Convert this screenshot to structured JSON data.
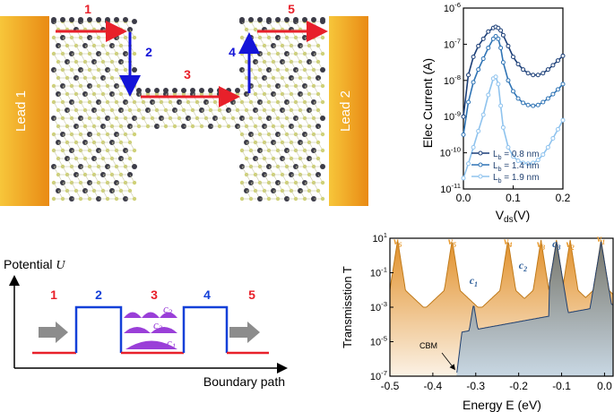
{
  "device": {
    "lead_left": "Lead 1",
    "lead_right": "Lead 2",
    "path_segments": [
      "1",
      "2",
      "3",
      "4",
      "5"
    ],
    "colors": {
      "lead": "#f2a020",
      "arrow_h": "#e8202a",
      "arrow_v": "#1414d8",
      "atom_c": "#cfd178",
      "atom_b": "#3c3c48"
    }
  },
  "potential": {
    "ylabel_text": "Potential ",
    "ylabel_symbol": "U",
    "xlabel": "Boundary path",
    "regions": [
      "1",
      "2",
      "3",
      "4",
      "5"
    ],
    "states": [
      {
        "sym": "c",
        "sub": "3"
      },
      {
        "sym": "c",
        "sub": "2"
      },
      {
        "sym": "c",
        "sub": "1"
      }
    ],
    "colors": {
      "low": "#e8202a",
      "barrier": "#1440d8",
      "state": "#9a3fd8",
      "arrow": "#8c8c8c"
    }
  },
  "chart_data": [
    {
      "type": "line",
      "title": "",
      "xlabel_main": "V",
      "xlabel_sub": "ds",
      "xlabel_unit": "(V)",
      "ylabel": "Elec Current (A)",
      "xlim": [
        0.0,
        0.2
      ],
      "ylim_log10": [
        -11,
        -6
      ],
      "yscale": "log",
      "x_ticks": [
        "0.0",
        "0.1",
        "0.2"
      ],
      "y_ticks": [
        {
          "base": "10",
          "exp": "-11"
        },
        {
          "base": "10",
          "exp": "-10"
        },
        {
          "base": "10",
          "exp": "-9"
        },
        {
          "base": "10",
          "exp": "-8"
        },
        {
          "base": "10",
          "exp": "-7"
        },
        {
          "base": "10",
          "exp": "-6"
        }
      ],
      "x": [
        0.0,
        0.01,
        0.02,
        0.03,
        0.04,
        0.05,
        0.06,
        0.065,
        0.07,
        0.075,
        0.08,
        0.09,
        0.1,
        0.11,
        0.12,
        0.13,
        0.14,
        0.15,
        0.16,
        0.17,
        0.18,
        0.19,
        0.2
      ],
      "series": [
        {
          "name": "L",
          "sub": "b",
          "value": " = 0.8 nm",
          "color": "#1c3f78",
          "log10_values": [
            -9.0,
            -7.85,
            -7.35,
            -7.05,
            -6.85,
            -6.65,
            -6.55,
            -6.52,
            -6.55,
            -6.62,
            -6.75,
            -7.05,
            -7.35,
            -7.55,
            -7.7,
            -7.8,
            -7.85,
            -7.85,
            -7.8,
            -7.7,
            -7.58,
            -7.45,
            -7.32
          ]
        },
        {
          "name": "L",
          "sub": "b",
          "value": " = 1.4 nm",
          "color": "#2f74b5",
          "log10_values": [
            -9.5,
            -8.6,
            -8.05,
            -7.7,
            -7.4,
            -7.1,
            -6.85,
            -6.78,
            -6.85,
            -7.1,
            -7.5,
            -8.0,
            -8.3,
            -8.5,
            -8.62,
            -8.68,
            -8.7,
            -8.68,
            -8.6,
            -8.5,
            -8.38,
            -8.25,
            -8.1
          ]
        },
        {
          "name": "L",
          "sub": "b",
          "value": " = 1.9 nm",
          "color": "#8fc3ee",
          "log10_values": [
            -10.7,
            -10.3,
            -9.85,
            -9.4,
            -8.95,
            -8.4,
            -7.95,
            -7.9,
            -8.1,
            -8.7,
            -9.3,
            -9.85,
            -10.1,
            -10.22,
            -10.28,
            -10.3,
            -10.28,
            -10.2,
            -10.05,
            -9.85,
            -9.6,
            -9.35,
            -9.1
          ]
        }
      ]
    },
    {
      "type": "area",
      "title": "",
      "xlabel": "Energy E (eV)",
      "ylabel": "Transmisstion T",
      "xlim": [
        -0.5,
        0.02
      ],
      "ylim_log10": [
        -7,
        1
      ],
      "yscale": "log",
      "x_ticks": [
        "-0.5",
        "-0.4",
        "-0.3",
        "-0.2",
        "-0.1",
        "0.0"
      ],
      "x_tick_values": [
        -0.5,
        -0.4,
        -0.3,
        -0.2,
        -0.1,
        0.0
      ],
      "y_ticks": [
        {
          "base": "10",
          "exp": "-7"
        },
        {
          "base": "10",
          "exp": "-5"
        },
        {
          "base": "10",
          "exp": "-3"
        },
        {
          "base": "10",
          "exp": "-1"
        },
        {
          "base": "10",
          "exp": "1"
        }
      ],
      "y_tick_values": [
        -7,
        -5,
        -3,
        -1,
        1
      ],
      "series": [
        {
          "name": "orange",
          "color": "#e89a30",
          "floor_log10": -3.6,
          "base_log10": -2.3,
          "resonances": [
            -0.482,
            -0.355,
            -0.225,
            -0.148,
            -0.112,
            -0.08,
            -0.008
          ]
        },
        {
          "name": "blue",
          "color": "#3a78b0",
          "edge": -0.345,
          "floor_log10": -4.8,
          "resonances": [
            -0.305,
            -0.112,
            -0.008
          ]
        }
      ],
      "annotations": [
        {
          "sym": "v",
          "sub": "6",
          "x": -0.482,
          "color": "#e89a30"
        },
        {
          "sym": "v",
          "sub": "5",
          "x": -0.355,
          "color": "#e89a30"
        },
        {
          "sym": "v",
          "sub": "4",
          "x": -0.225,
          "color": "#e89a30"
        },
        {
          "sym": "v",
          "sub": "3",
          "x": -0.148,
          "color": "#e89a30"
        },
        {
          "sym": "v",
          "sub": "2",
          "x": -0.08,
          "color": "#e89a30"
        },
        {
          "sym": "v",
          "sub": "1",
          "x": -0.008,
          "color": "#e89a30"
        },
        {
          "sym": "c",
          "sub": "1",
          "x": -0.305,
          "color": "#2f5f9a"
        },
        {
          "sym": "c",
          "sub": "2",
          "x": -0.19,
          "color": "#2f5f9a"
        },
        {
          "sym": "c",
          "sub": "3",
          "x": -0.112,
          "color": "#2f5f9a"
        }
      ],
      "cbm_label": "CBM"
    }
  ]
}
